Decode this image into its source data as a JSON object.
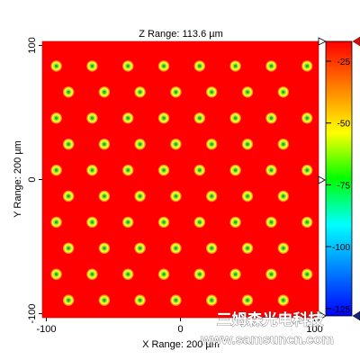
{
  "chart_data": {
    "type": "heatmap",
    "title": "Z Range:  113.6 µm",
    "xlabel": "X Range:  200 µm",
    "ylabel": "Y Range:  200 µm",
    "xlim": [
      -103,
      103
    ],
    "ylim": [
      -103,
      103
    ],
    "x_ticks": [
      {
        "value": -100,
        "label": "-100"
      },
      {
        "value": 0,
        "label": "0"
      },
      {
        "value": 100,
        "label": "100"
      }
    ],
    "y_ticks": [
      {
        "value": 100,
        "label": "100"
      },
      {
        "value": 0,
        "label": "0"
      },
      {
        "value": -100,
        "label": "-100"
      }
    ],
    "background_value": -20,
    "colorbar": {
      "min": -128,
      "max": -17,
      "ticks": [
        {
          "value": -25,
          "label": "-25"
        },
        {
          "value": -50,
          "label": "-50"
        },
        {
          "value": -75,
          "label": "-75"
        },
        {
          "value": -100,
          "label": "-100"
        },
        {
          "value": -125,
          "label": "-125"
        }
      ],
      "gradient": [
        "#ff0000",
        "#ff8000",
        "#ffff00",
        "#00ff00",
        "#00ffff",
        "#0080ff",
        "#0000ff"
      ]
    },
    "pattern": {
      "type": "hex_dot_array",
      "pitch_x": 26.7,
      "pitch_y": 19.4,
      "row_offset_x": 9.0,
      "x0": -92.5,
      "y0": 84.6,
      "rows": 10,
      "cols": 8,
      "dot_core_value": -75,
      "dot_rim_value": -45
    }
  },
  "watermark": {
    "cn": "三姆森光电科技",
    "url": "www.samsuncn.com"
  },
  "colors": {
    "background": "#ff0000",
    "dot_rim": "#ffff20",
    "dot_mid": "#b8e830",
    "dot_core": "#38d838",
    "marker_fill": "#ffffff",
    "marker_red": "#d01010",
    "marker_navy": "#1a2a7a"
  }
}
